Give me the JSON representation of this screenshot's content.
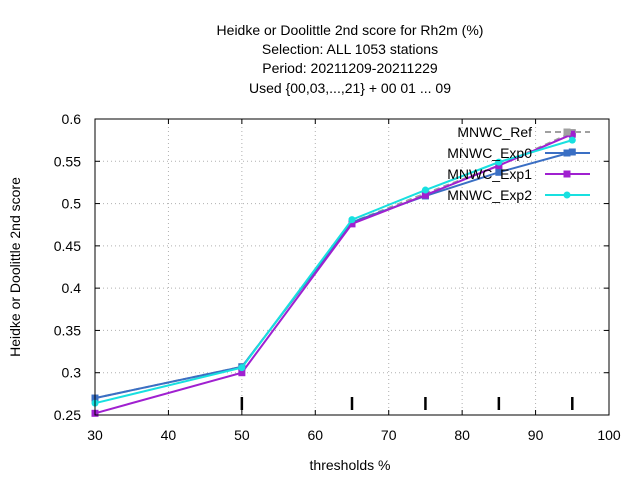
{
  "chart_data": {
    "type": "line",
    "title_lines": [
      "Heidke or Doolittle 2nd score  for Rh2m (%)",
      "Selection: ALL    1053 stations",
      "Period: 20211209-20211229",
      "Used {00,03,...,21} + 00 01 ... 09"
    ],
    "xlabel": "thresholds %",
    "ylabel": "Heidke or Doolittle 2nd score",
    "xlim": [
      30,
      100
    ],
    "ylim": [
      0.25,
      0.6
    ],
    "x_ticks": [
      30,
      40,
      50,
      60,
      70,
      80,
      90,
      100
    ],
    "y_ticks": [
      0.25,
      0.3,
      0.35,
      0.4,
      0.45,
      0.5,
      0.55,
      0.6
    ],
    "y_tick_labels": [
      "0.25",
      "0.3",
      "0.35",
      "0.4",
      "0.45",
      "0.5",
      "0.55",
      "0.6"
    ],
    "grid": true,
    "legend_position": "top-right",
    "sample_marks_x": [
      50,
      65,
      75,
      85,
      95
    ],
    "x": [
      30,
      50,
      65,
      75,
      85,
      95
    ],
    "series": [
      {
        "name": "MNWC_Ref",
        "color": "#a0a0a0",
        "dashed": true,
        "marker": "square",
        "values": [
          0.27,
          0.307,
          0.478,
          0.512,
          0.545,
          0.584
        ]
      },
      {
        "name": "MNWC_Exp0",
        "color": "#3a6fc4",
        "dashed": false,
        "marker": "square",
        "values": [
          0.27,
          0.307,
          0.478,
          0.509,
          0.537,
          0.561
        ]
      },
      {
        "name": "MNWC_Exp1",
        "color": "#a020d0",
        "dashed": false,
        "marker": "square",
        "values": [
          0.252,
          0.3,
          0.476,
          0.51,
          0.545,
          0.582
        ]
      },
      {
        "name": "MNWC_Exp2",
        "color": "#18e0e0",
        "dashed": false,
        "marker": "circle",
        "values": [
          0.264,
          0.306,
          0.481,
          0.516,
          0.549,
          0.575
        ]
      }
    ]
  }
}
